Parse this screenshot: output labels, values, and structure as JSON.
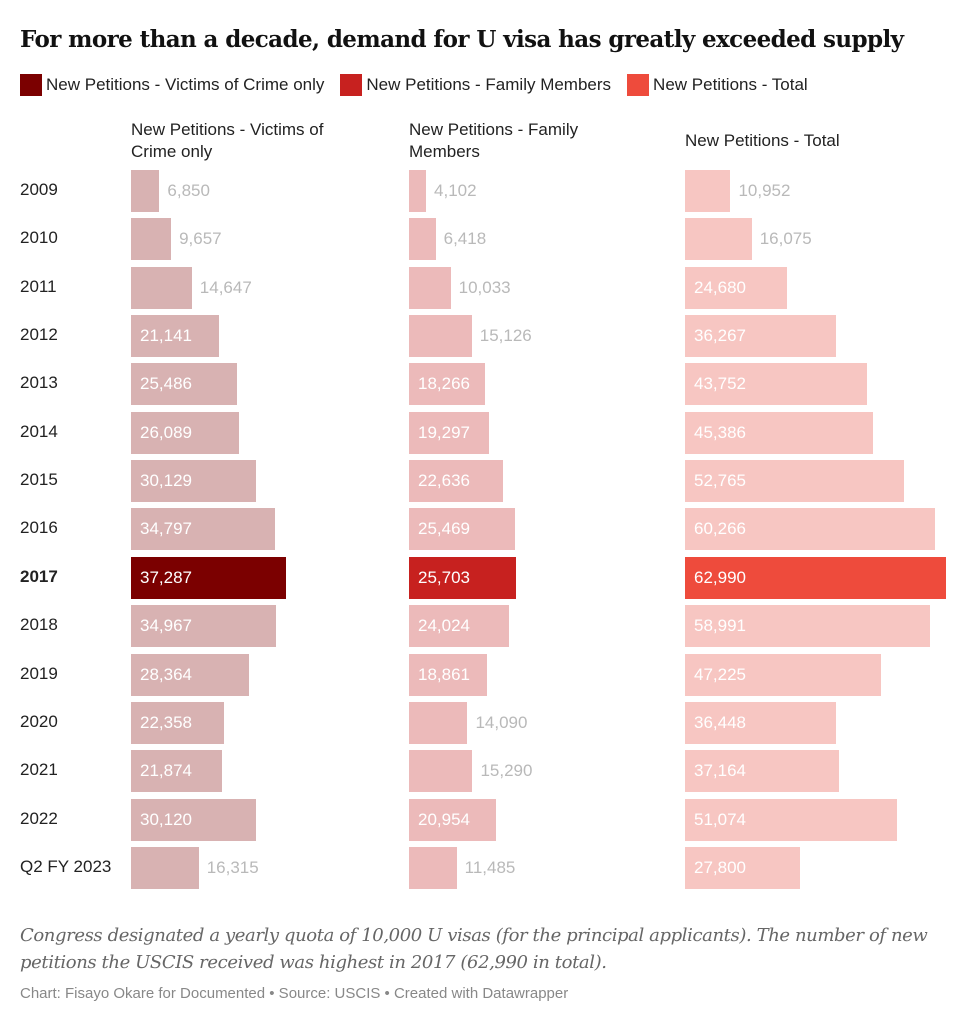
{
  "title": "For more than a decade, demand for U visa has greatly exceeded supply",
  "legend": [
    {
      "label": "New Petitions - Victims of Crime only",
      "color": "#7b0000"
    },
    {
      "label": "New Petitions - Family Members",
      "color": "#c7211f"
    },
    {
      "label": "New Petitions - Total",
      "color": "#ee4b3c"
    }
  ],
  "description": "Congress designated a yearly quota of 10,000 U visas (for the principal applicants). The number of new petitions the USCIS received was highest in 2017 (62,990 in total).",
  "credit": "Chart: Fisayo Okare for Documented • Source: USCIS • Created with Datawrapper",
  "chart_data": {
    "type": "bar",
    "orientation": "horizontal",
    "title": "For more than a decade, demand for U visa has greatly exceeded supply",
    "categories": [
      "2009",
      "2010",
      "2011",
      "2012",
      "2013",
      "2014",
      "2015",
      "2016",
      "2017",
      "2018",
      "2019",
      "2020",
      "2021",
      "2022",
      "Q2 FY 2023"
    ],
    "highlight_category": "2017",
    "series": [
      {
        "name": "New Petitions - Victims of Crime only",
        "header": "New Petitions - Victims of Crime only",
        "color": "#7b0000",
        "muted_color": "#d8b2b2",
        "values": [
          6850,
          9657,
          14647,
          21141,
          25486,
          26089,
          30129,
          34797,
          37287,
          34967,
          28364,
          22358,
          21874,
          30120,
          16315
        ],
        "labels": [
          "6,850",
          "9,657",
          "14,647",
          "21,141",
          "25,486",
          "26,089",
          "30,129",
          "34,797",
          "37,287",
          "34,967",
          "28,364",
          "22,358",
          "21,874",
          "30,120",
          "16,315"
        ]
      },
      {
        "name": "New Petitions - Family Members",
        "header": "New Petitions - Family Members",
        "color": "#c7211f",
        "muted_color": "#ecbaba",
        "values": [
          4102,
          6418,
          10033,
          15126,
          18266,
          19297,
          22636,
          25469,
          25703,
          24024,
          18861,
          14090,
          15290,
          20954,
          11485
        ],
        "labels": [
          "4,102",
          "6,418",
          "10,033",
          "15,126",
          "18,266",
          "19,297",
          "22,636",
          "25,469",
          "25,703",
          "24,024",
          "18,861",
          "14,090",
          "15,290",
          "20,954",
          "11,485"
        ]
      },
      {
        "name": "New Petitions - Total",
        "header": "New Petitions - Total",
        "color": "#ee4b3c",
        "muted_color": "#f7c6c2",
        "values": [
          10952,
          16075,
          24680,
          36267,
          43752,
          45386,
          52765,
          60266,
          62990,
          58991,
          47225,
          36448,
          37164,
          51074,
          27800
        ],
        "labels": [
          "10,952",
          "16,075",
          "24,680",
          "36,267",
          "43,752",
          "45,386",
          "52,765",
          "60,266",
          "62,990",
          "58,991",
          "47,225",
          "36,448",
          "37,164",
          "51,074",
          "27,800"
        ]
      }
    ],
    "xlim": [
      0,
      63000
    ],
    "grid": false,
    "legend_position": "top-left"
  }
}
